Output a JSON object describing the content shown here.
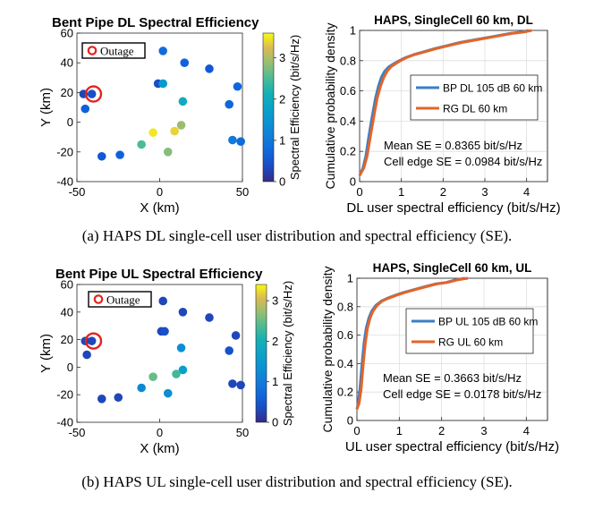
{
  "chart_data": [
    {
      "type": "scatter",
      "title": "Bent Pipe DL Spectral Efficiency",
      "xlabel": "X (km)",
      "ylabel": "Y (km)",
      "colorbar_label": "Spectral Efficiency (bit/s/Hz)",
      "xlim": [
        -50,
        50
      ],
      "ylim": [
        -40,
        60
      ],
      "clim": [
        0,
        3.6
      ],
      "xticks": [
        "-50",
        "0",
        "50"
      ],
      "yticks": [
        "-40",
        "-20",
        "0",
        "20",
        "40",
        "60"
      ],
      "cticks": [
        "0",
        "1",
        "2",
        "3"
      ],
      "legend": "Outage",
      "outage": {
        "x": -40,
        "y": 19
      },
      "points": [
        {
          "x": 2,
          "y": 48,
          "v": 0.8
        },
        {
          "x": 15,
          "y": 40,
          "v": 0.6
        },
        {
          "x": 30,
          "y": 36,
          "v": 0.5
        },
        {
          "x": -1,
          "y": 26,
          "v": 0.4
        },
        {
          "x": 2,
          "y": 26,
          "v": 1.6
        },
        {
          "x": 47,
          "y": 24,
          "v": 0.7
        },
        {
          "x": -46,
          "y": 19,
          "v": 0.3
        },
        {
          "x": -41,
          "y": 19,
          "v": 0.4
        },
        {
          "x": 14,
          "y": 14,
          "v": 2.0
        },
        {
          "x": 42,
          "y": 12,
          "v": 0.7
        },
        {
          "x": -45,
          "y": 9,
          "v": 0.6
        },
        {
          "x": 13,
          "y": -2,
          "v": 2.9
        },
        {
          "x": 9,
          "y": -6,
          "v": 3.4
        },
        {
          "x": -4,
          "y": -7,
          "v": 3.5
        },
        {
          "x": 44,
          "y": -12,
          "v": 1.0
        },
        {
          "x": 49,
          "y": -13,
          "v": 0.8
        },
        {
          "x": -11,
          "y": -15,
          "v": 2.5
        },
        {
          "x": 5,
          "y": -20,
          "v": 2.8
        },
        {
          "x": -24,
          "y": -22,
          "v": 0.6
        },
        {
          "x": -35,
          "y": -23,
          "v": 0.5
        }
      ]
    },
    {
      "type": "line",
      "title": "HAPS, SingleCell 60 km, DL",
      "xlabel": "DL user spectral efficiency (bit/s/Hz)",
      "ylabel": "Cumulative probability density",
      "xlim": [
        0,
        4.5
      ],
      "ylim": [
        0,
        1
      ],
      "xticks": [
        "0",
        "1",
        "2",
        "3",
        "4"
      ],
      "yticks": [
        "0",
        "0.2",
        "0.4",
        "0.6",
        "0.8",
        "1"
      ],
      "series": [
        {
          "name": "BP DL 105 dB 60 km",
          "color": "#3a7fc4",
          "x": [
            0,
            0.08,
            0.15,
            0.22,
            0.3,
            0.38,
            0.45,
            0.52,
            0.6,
            0.7,
            0.82,
            0.95,
            1.1,
            1.3,
            1.55,
            1.8,
            2.1,
            2.4,
            2.8,
            3.2,
            3.6,
            3.9,
            4.05
          ],
          "y": [
            0.04,
            0.09,
            0.17,
            0.3,
            0.43,
            0.55,
            0.63,
            0.69,
            0.73,
            0.76,
            0.78,
            0.8,
            0.82,
            0.84,
            0.86,
            0.88,
            0.9,
            0.92,
            0.94,
            0.96,
            0.98,
            0.99,
            1.0
          ]
        },
        {
          "name": "RG DL 60 km",
          "color": "#e3642a",
          "x": [
            0,
            0.1,
            0.18,
            0.26,
            0.34,
            0.42,
            0.5,
            0.58,
            0.66,
            0.75,
            0.86,
            0.98,
            1.12,
            1.32,
            1.58,
            1.84,
            2.14,
            2.45,
            2.85,
            3.25,
            3.65,
            3.95,
            4.12
          ],
          "y": [
            0.04,
            0.09,
            0.17,
            0.3,
            0.43,
            0.55,
            0.63,
            0.69,
            0.73,
            0.76,
            0.78,
            0.8,
            0.82,
            0.84,
            0.86,
            0.88,
            0.9,
            0.92,
            0.94,
            0.96,
            0.98,
            0.99,
            1.0
          ]
        }
      ],
      "annotations": [
        "Mean SE = 0.8365 bit/s/Hz",
        "Cell edge SE = 0.0984 bit/s/Hz"
      ]
    },
    {
      "type": "scatter",
      "title": "Bent Pipe UL Spectral Efficiency",
      "xlabel": "X (km)",
      "ylabel": "Y (km)",
      "colorbar_label": "Spectral Efficiency (bit/s/Hz)",
      "xlim": [
        -50,
        50
      ],
      "ylim": [
        -40,
        60
      ],
      "clim": [
        0,
        3.4
      ],
      "xticks": [
        "-50",
        "0",
        "50"
      ],
      "yticks": [
        "-40",
        "-20",
        "0",
        "20",
        "40",
        "60"
      ],
      "cticks": [
        "0",
        "1",
        "2",
        "3"
      ],
      "legend": "Outage",
      "outage": {
        "x": -40,
        "y": 19
      },
      "points": [
        {
          "x": 2,
          "y": 48,
          "v": 0.3
        },
        {
          "x": 14,
          "y": 40,
          "v": 0.3
        },
        {
          "x": 30,
          "y": 36,
          "v": 0.3
        },
        {
          "x": 1,
          "y": 26,
          "v": 0.3
        },
        {
          "x": 3,
          "y": 26,
          "v": 0.4
        },
        {
          "x": 46,
          "y": 23,
          "v": 0.3
        },
        {
          "x": -45,
          "y": 19,
          "v": 0.3
        },
        {
          "x": -41,
          "y": 19,
          "v": 0.3
        },
        {
          "x": 13,
          "y": 14,
          "v": 1.3
        },
        {
          "x": 42,
          "y": 12,
          "v": 0.4
        },
        {
          "x": -44,
          "y": 9,
          "v": 0.3
        },
        {
          "x": 14,
          "y": -2,
          "v": 1.6
        },
        {
          "x": 10,
          "y": -5,
          "v": 2.3
        },
        {
          "x": -4,
          "y": -7,
          "v": 2.5
        },
        {
          "x": 44,
          "y": -12,
          "v": 0.3
        },
        {
          "x": 49,
          "y": -13,
          "v": 0.3
        },
        {
          "x": -11,
          "y": -15,
          "v": 1.2
        },
        {
          "x": 5,
          "y": -19,
          "v": 1.3
        },
        {
          "x": -25,
          "y": -22,
          "v": 0.3
        },
        {
          "x": -35,
          "y": -23,
          "v": 0.3
        }
      ]
    },
    {
      "type": "line",
      "title": "HAPS, SingleCell 60 km, UL",
      "xlabel": "UL user spectral efficiency (bit/s/Hz)",
      "ylabel": "Cumulative probability density",
      "xlim": [
        0,
        4.5
      ],
      "ylim": [
        0,
        1
      ],
      "xticks": [
        "0",
        "1",
        "2",
        "3",
        "4"
      ],
      "yticks": [
        "0",
        "0.2",
        "0.4",
        "0.6",
        "0.8",
        "1"
      ],
      "series": [
        {
          "name": "BP UL 105 dB 60 km",
          "color": "#3a7fc4",
          "x": [
            0,
            0.03,
            0.07,
            0.12,
            0.17,
            0.22,
            0.28,
            0.35,
            0.45,
            0.58,
            0.72,
            0.9,
            1.1,
            1.35,
            1.6,
            1.85,
            2.1,
            2.35,
            2.55
          ],
          "y": [
            0.08,
            0.12,
            0.22,
            0.4,
            0.55,
            0.65,
            0.72,
            0.77,
            0.81,
            0.84,
            0.86,
            0.88,
            0.9,
            0.92,
            0.94,
            0.96,
            0.97,
            0.99,
            1.0
          ]
        },
        {
          "name": "RG UL 60 km",
          "color": "#e3642a",
          "x": [
            0,
            0.05,
            0.1,
            0.15,
            0.2,
            0.25,
            0.31,
            0.38,
            0.48,
            0.6,
            0.75,
            0.93,
            1.13,
            1.38,
            1.63,
            1.88,
            2.13,
            2.4,
            2.62
          ],
          "y": [
            0.08,
            0.12,
            0.22,
            0.4,
            0.55,
            0.65,
            0.72,
            0.77,
            0.81,
            0.84,
            0.86,
            0.88,
            0.9,
            0.92,
            0.94,
            0.96,
            0.97,
            0.99,
            1.0
          ]
        }
      ],
      "annotations": [
        "Mean SE = 0.3663 bit/s/Hz",
        "Cell edge SE = 0.0178 bit/s/Hz"
      ]
    }
  ],
  "captions": {
    "a": "(a) HAPS DL single-cell user distribution and spectral efficiency (SE).",
    "b": "(b) HAPS UL single-cell user distribution and spectral efficiency (SE)."
  }
}
